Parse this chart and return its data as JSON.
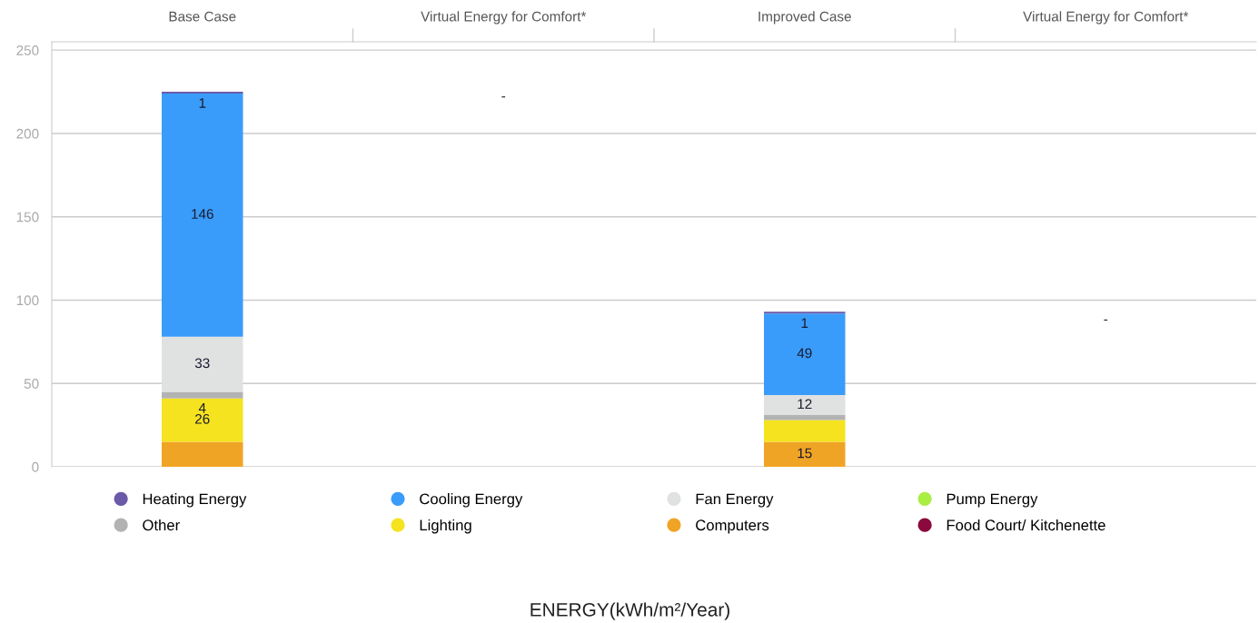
{
  "chart_data": {
    "type": "bar",
    "stacked": true,
    "categories": [
      "Base Case",
      "Virtual Energy for Comfort*",
      "Improved Case",
      "Virtual Energy for Comfort*"
    ],
    "series": [
      {
        "name": "Computers",
        "color": "#f0a425",
        "values": [
          15,
          null,
          15,
          null
        ],
        "value_labels": [
          null,
          null,
          "15",
          null
        ]
      },
      {
        "name": "Lighting",
        "color": "#f5e31f",
        "values": [
          26,
          null,
          13,
          null
        ],
        "value_labels": [
          "26",
          null,
          null,
          null
        ]
      },
      {
        "name": "Other",
        "color": "#b3b3b3",
        "values": [
          4,
          null,
          3,
          null
        ],
        "value_labels": [
          "4",
          null,
          null,
          null
        ]
      },
      {
        "name": "Fan Energy",
        "color": "#e0e1e1",
        "values": [
          33,
          null,
          12,
          null
        ],
        "value_labels": [
          "33",
          null,
          "12",
          null
        ]
      },
      {
        "name": "Cooling Energy",
        "color": "#3a9cfa",
        "values": [
          146,
          null,
          49,
          null
        ],
        "value_labels": [
          "146",
          null,
          "49",
          null
        ]
      },
      {
        "name": "Heating Energy",
        "color": "#6a5aa8",
        "values": [
          1,
          null,
          1,
          null
        ],
        "value_labels": [
          "1",
          null,
          "1",
          null
        ]
      },
      {
        "name": "Pump Energy",
        "color": "#aaee44",
        "values": [
          null,
          null,
          null,
          null
        ]
      },
      {
        "name": "Food Court/ Kitchenette",
        "color": "#8b0a3e",
        "values": [
          null,
          null,
          null,
          null
        ]
      }
    ],
    "annotations": [
      "-",
      "-",
      "ENERGY(kWh/m²/Year)"
    ],
    "ylim": [
      0,
      255
    ],
    "yticks": [
      0,
      50,
      100,
      150,
      200,
      250
    ],
    "grid": "y",
    "legend": "bottom"
  }
}
